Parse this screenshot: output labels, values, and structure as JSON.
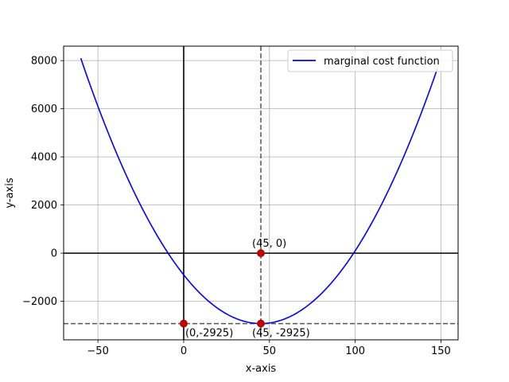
{
  "chart_data": {
    "type": "line",
    "title": "",
    "xlabel": "x-axis",
    "ylabel": "y-axis",
    "xlim": [
      -70,
      160
    ],
    "ylim": [
      -3600,
      8600
    ],
    "xticks": [
      -50,
      0,
      50,
      100,
      150
    ],
    "yticks": [
      -2000,
      0,
      2000,
      4000,
      6000,
      8000
    ],
    "xtick_labels": [
      "−50",
      "0",
      "50",
      "100",
      "150"
    ],
    "ytick_labels": [
      "−2000",
      "0",
      "2000",
      "4000",
      "6000",
      "8000"
    ],
    "grid": true,
    "legend_position": "top-right",
    "series": [
      {
        "name": "marginal cost function",
        "color": "#0000ff",
        "function": "x^2 - 90x - 900",
        "x_range": [
          -60,
          148
        ],
        "points": [
          [
            -60,
            8100
          ],
          [
            -40,
            5300
          ],
          [
            -20,
            2700
          ],
          [
            0,
            -900
          ],
          [
            20,
            -2300
          ],
          [
            45,
            -2925
          ],
          [
            70,
            -2300
          ],
          [
            100,
            100
          ],
          [
            120,
            3700
          ],
          [
            148,
            7686
          ]
        ]
      }
    ],
    "reference_lines": [
      {
        "orientation": "horizontal",
        "value": 0,
        "style": "solid",
        "color": "#000000"
      },
      {
        "orientation": "vertical",
        "value": 0,
        "style": "solid",
        "color": "#000000"
      },
      {
        "orientation": "vertical",
        "value": 45,
        "style": "dashed",
        "color": "#555555"
      },
      {
        "orientation": "horizontal",
        "value": -2925,
        "style": "dashed",
        "color": "#555555"
      }
    ],
    "points": [
      {
        "x": 45,
        "y": 0,
        "label": "(45, 0)",
        "label_side": "above"
      },
      {
        "x": 0,
        "y": -2925,
        "label": "(0,-2925)",
        "label_side": "below"
      },
      {
        "x": 45,
        "y": -2925,
        "label": "(45, -2925)",
        "label_side": "below"
      }
    ],
    "point_color": "#cc0000"
  }
}
